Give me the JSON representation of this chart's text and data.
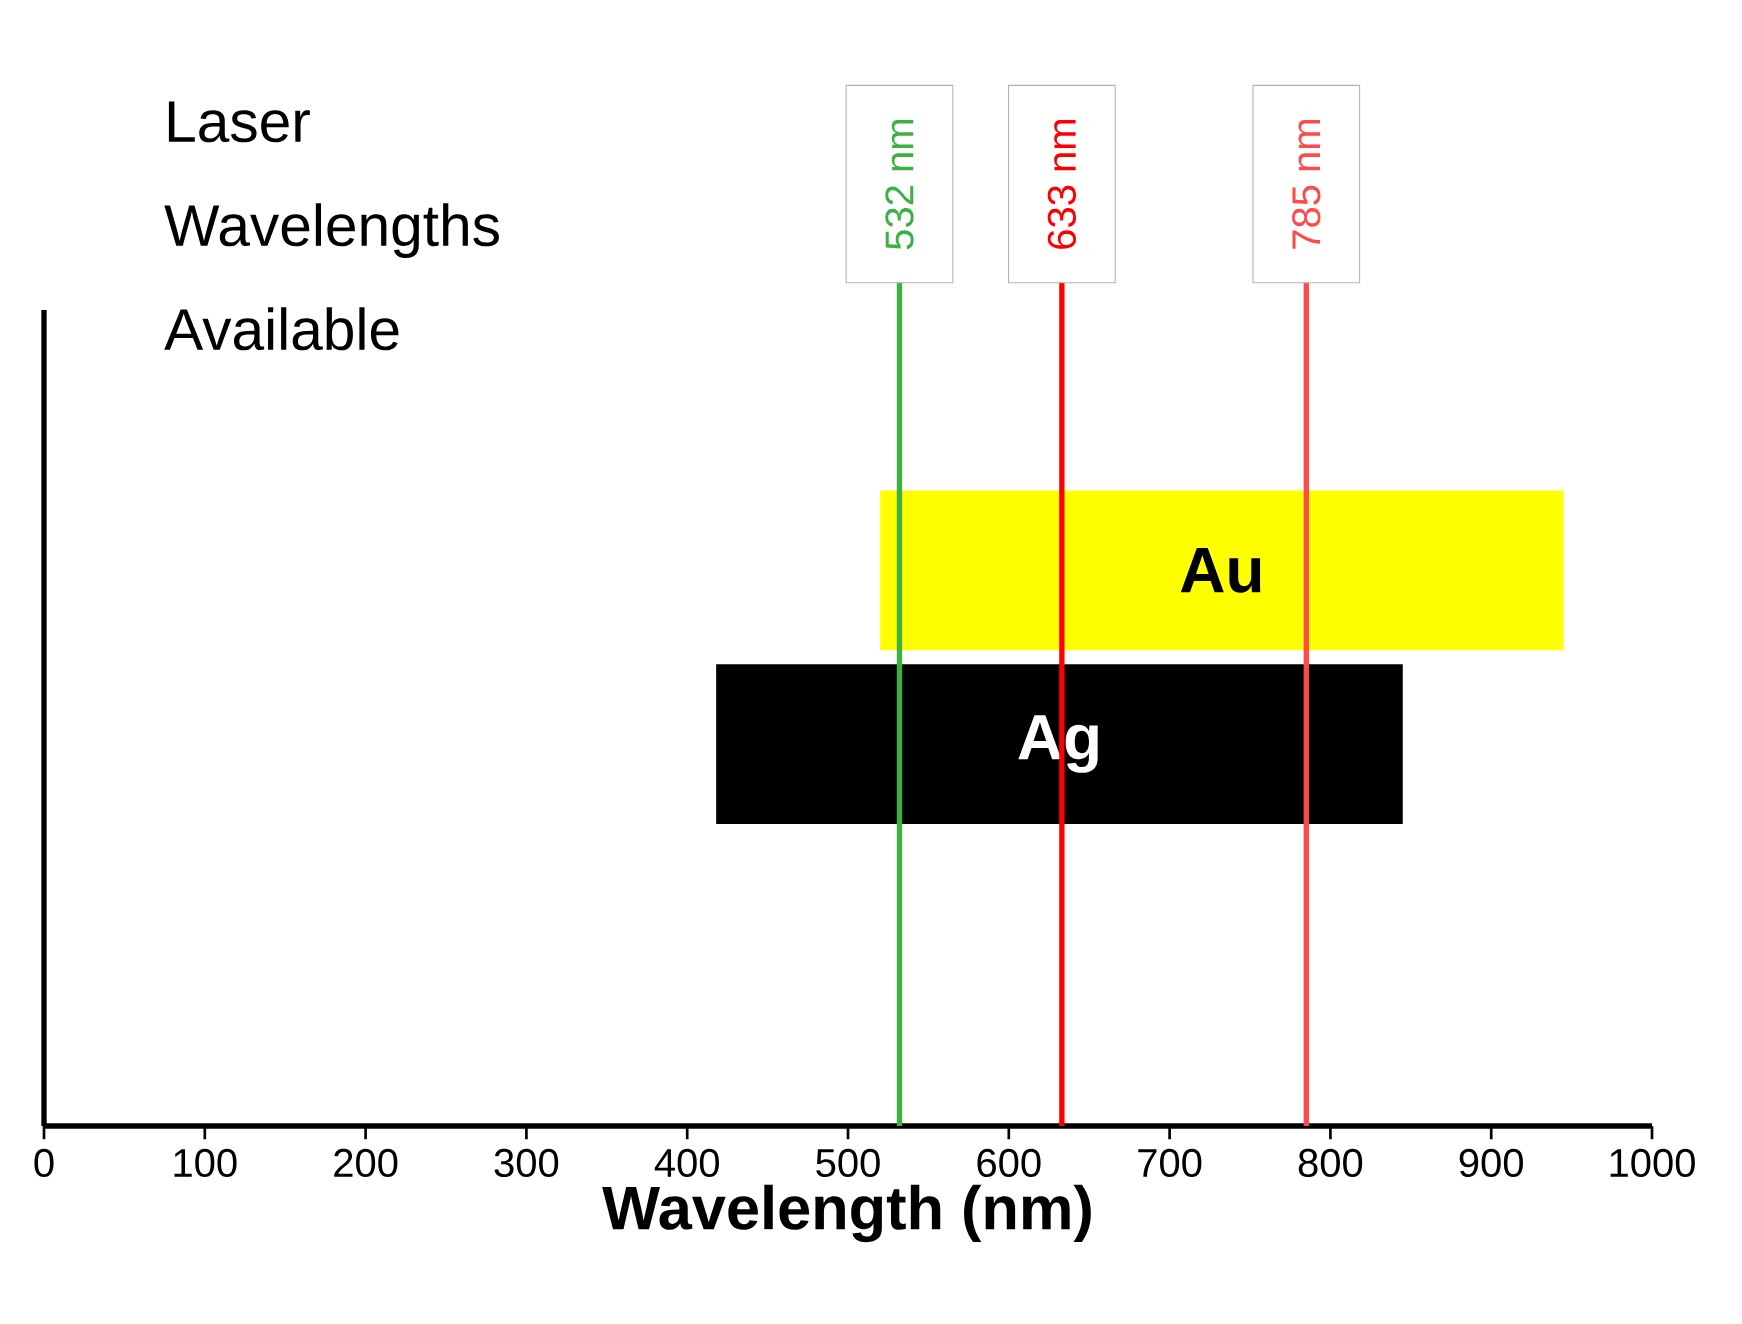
{
  "chart_data": {
    "type": "bar",
    "orientation": "horizontal",
    "title": "Laser Wavelengths Available",
    "xlabel": "Wavelength (nm)",
    "categories": [
      "Au",
      "Ag"
    ],
    "base": [
      520,
      418
    ],
    "values": [
      425,
      427
    ],
    "colors": [
      "#ffff00",
      "#000000"
    ],
    "xlim": [
      0,
      1000
    ],
    "xticks": [
      0,
      100,
      200,
      300,
      400,
      500,
      600,
      700,
      800,
      900,
      1000
    ],
    "ref_lines": [
      {
        "axis": "x",
        "value": 532,
        "label": "532 nm",
        "color": "#3cb043"
      },
      {
        "axis": "x",
        "value": 633,
        "label": "633 nm",
        "color": "#ff0000"
      },
      {
        "axis": "x",
        "value": 785,
        "label": "785 nm",
        "color": "#ff4a4a"
      }
    ],
    "grid": false
  }
}
